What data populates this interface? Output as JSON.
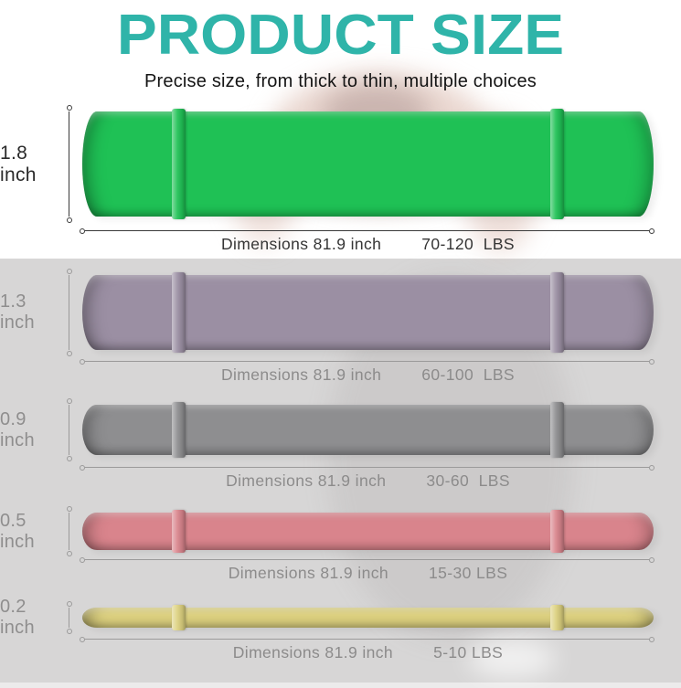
{
  "header": {
    "title": "PRODUCT SIZE",
    "subtitle": "Precise size, from thick to thin, multiple choices"
  },
  "colors": {
    "accent": "#2fb4a9",
    "highlight_section_bg": "#ffffff",
    "faded_section_bg": "#d7d6d6"
  },
  "bands": [
    {
      "name": "green-band",
      "thickness": "1.8 inch",
      "dimensions": "Dimensions 81.9 inch",
      "weight": "70-120  LBS",
      "color": "#1fc155"
    },
    {
      "name": "purple-band",
      "thickness": "1.3 inch",
      "dimensions": "Dimensions 81.9 inch",
      "weight": "60-100  LBS",
      "color": "#9b8fa3"
    },
    {
      "name": "gray-band",
      "thickness": "0.9 inch",
      "dimensions": "Dimensions 81.9 inch",
      "weight": "30-60  LBS",
      "color": "#8e8e90"
    },
    {
      "name": "red-band",
      "thickness": "0.5 inch",
      "dimensions": "Dimensions 81.9 inch",
      "weight": "15-30 LBS",
      "color": "#d9848c"
    },
    {
      "name": "yellow-band",
      "thickness": "0.2 inch",
      "dimensions": "Dimensions 81.9 inch",
      "weight": "5-10 LBS",
      "color": "#ddd17f"
    }
  ]
}
